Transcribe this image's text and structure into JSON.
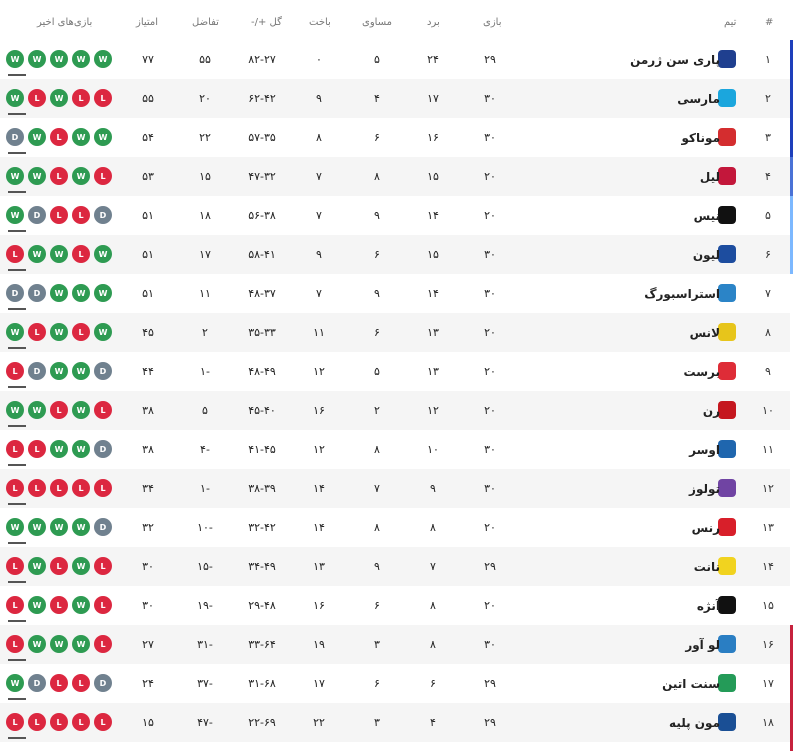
{
  "headers": {
    "pos": "#",
    "team": "تیم",
    "played": "بازی",
    "won": "برد",
    "drawn": "مساوی",
    "lost": "باخت",
    "goals": "گل +/-",
    "diff": "تفاضل",
    "points": "امتیاز",
    "form": "بازی‌های اخیر"
  },
  "colors": {
    "W": "#2e9b52",
    "D": "#70818f",
    "L": "#dc2740"
  },
  "rows": [
    {
      "pos": "۱",
      "team": "پاری سن ژرمن",
      "played": "۲۹",
      "won": "۲۴",
      "drawn": "۵",
      "lost": "۰",
      "goals": "۸۲-۲۷",
      "diff": "۵۵",
      "points": "۷۷",
      "form": [
        "W",
        "W",
        "W",
        "W",
        "W"
      ],
      "color": "#1f3f8f"
    },
    {
      "pos": "۲",
      "team": "مارسی",
      "played": "۳۰",
      "won": "۱۷",
      "drawn": "۴",
      "lost": "۹",
      "goals": "۶۲-۴۲",
      "diff": "۲۰",
      "points": "۵۵",
      "form": [
        "W",
        "L",
        "W",
        "L",
        "L"
      ],
      "color": "#1ba6dd"
    },
    {
      "pos": "۳",
      "team": "موناکو",
      "played": "۳۰",
      "won": "۱۶",
      "drawn": "۶",
      "lost": "۸",
      "goals": "۵۷-۳۵",
      "diff": "۲۲",
      "points": "۵۴",
      "form": [
        "D",
        "W",
        "L",
        "W",
        "W"
      ],
      "color": "#d42d2f"
    },
    {
      "pos": "۴",
      "team": "لیل",
      "played": "۲۰",
      "won": "۱۵",
      "drawn": "۸",
      "lost": "۷",
      "goals": "۴۷-۳۲",
      "diff": "۱۵",
      "points": "۵۳",
      "form": [
        "W",
        "W",
        "L",
        "W",
        "L"
      ],
      "color": "#c3173b"
    },
    {
      "pos": "۵",
      "team": "نیس",
      "played": "۲۰",
      "won": "۱۴",
      "drawn": "۹",
      "lost": "۷",
      "goals": "۵۶-۳۸",
      "diff": "۱۸",
      "points": "۵۱",
      "form": [
        "W",
        "D",
        "L",
        "L",
        "D"
      ],
      "color": "#111111"
    },
    {
      "pos": "۶",
      "team": "لیون",
      "played": "۳۰",
      "won": "۱۵",
      "drawn": "۶",
      "lost": "۹",
      "goals": "۵۸-۴۱",
      "diff": "۱۷",
      "points": "۵۱",
      "form": [
        "L",
        "W",
        "W",
        "L",
        "W"
      ],
      "color": "#1d4d9f"
    },
    {
      "pos": "۷",
      "team": "استراسبورگ",
      "played": "۳۰",
      "won": "۱۴",
      "drawn": "۹",
      "lost": "۷",
      "goals": "۴۸-۳۷",
      "diff": "۱۱",
      "points": "۵۱",
      "form": [
        "D",
        "D",
        "W",
        "W",
        "W"
      ],
      "color": "#2b84c7"
    },
    {
      "pos": "۸",
      "team": "لانس",
      "played": "۲۰",
      "won": "۱۳",
      "drawn": "۶",
      "lost": "۱۱",
      "goals": "۳۵-۳۳",
      "diff": "۲",
      "points": "۴۵",
      "form": [
        "W",
        "L",
        "W",
        "L",
        "W"
      ],
      "color": "#e7c51b"
    },
    {
      "pos": "۹",
      "team": "برست",
      "played": "۲۰",
      "won": "۱۳",
      "drawn": "۵",
      "lost": "۱۲",
      "goals": "۴۸-۴۹",
      "diff": "-۱",
      "points": "۴۴",
      "form": [
        "L",
        "D",
        "W",
        "W",
        "D"
      ],
      "color": "#de2c37"
    },
    {
      "pos": "۱۰",
      "team": "رن",
      "played": "۲۰",
      "won": "۱۲",
      "drawn": "۲",
      "lost": "۱۶",
      "goals": "۴۵-۴۰",
      "diff": "۵",
      "points": "۳۸",
      "form": [
        "W",
        "W",
        "L",
        "W",
        "L"
      ],
      "color": "#c5171f"
    },
    {
      "pos": "۱۱",
      "team": "اوسر",
      "played": "۳۰",
      "won": "۱۰",
      "drawn": "۸",
      "lost": "۱۲",
      "goals": "۴۱-۴۵",
      "diff": "-۴",
      "points": "۳۸",
      "form": [
        "L",
        "L",
        "W",
        "W",
        "D"
      ],
      "color": "#1f66ae"
    },
    {
      "pos": "۱۲",
      "team": "تولوز",
      "played": "۳۰",
      "won": "۹",
      "drawn": "۷",
      "lost": "۱۴",
      "goals": "۳۸-۳۹",
      "diff": "-۱",
      "points": "۳۴",
      "form": [
        "L",
        "L",
        "L",
        "L",
        "L"
      ],
      "color": "#7044a3"
    },
    {
      "pos": "۱۳",
      "team": "رنس",
      "played": "۲۰",
      "won": "۸",
      "drawn": "۸",
      "lost": "۱۴",
      "goals": "۳۲-۴۲",
      "diff": "-۱۰",
      "points": "۳۲",
      "form": [
        "W",
        "W",
        "W",
        "W",
        "D"
      ],
      "color": "#d81f2a"
    },
    {
      "pos": "۱۴",
      "team": "نانت",
      "played": "۲۹",
      "won": "۷",
      "drawn": "۹",
      "lost": "۱۳",
      "goals": "۳۴-۴۹",
      "diff": "-۱۵",
      "points": "۳۰",
      "form": [
        "L",
        "W",
        "L",
        "W",
        "L"
      ],
      "color": "#f1d31f"
    },
    {
      "pos": "۱۵",
      "team": "آنژه",
      "played": "۲۰",
      "won": "۸",
      "drawn": "۶",
      "lost": "۱۶",
      "goals": "۲۹-۴۸",
      "diff": "-۱۹",
      "points": "۳۰",
      "form": [
        "L",
        "W",
        "L",
        "W",
        "L"
      ],
      "color": "#111111"
    },
    {
      "pos": "۱۶",
      "team": "لو آور",
      "played": "۳۰",
      "won": "۸",
      "drawn": "۳",
      "lost": "۱۹",
      "goals": "۳۳-۶۴",
      "diff": "-۳۱",
      "points": "۲۷",
      "form": [
        "L",
        "W",
        "W",
        "W",
        "L"
      ],
      "color": "#2a7ec3"
    },
    {
      "pos": "۱۷",
      "team": "سنت اتین",
      "played": "۲۹",
      "won": "۶",
      "drawn": "۶",
      "lost": "۱۷",
      "goals": "۳۱-۶۸",
      "diff": "-۳۷",
      "points": "۲۴",
      "form": [
        "W",
        "D",
        "L",
        "L",
        "D"
      ],
      "color": "#249b58"
    },
    {
      "pos": "۱۸",
      "team": "مون پلیه",
      "played": "۲۹",
      "won": "۴",
      "drawn": "۳",
      "lost": "۲۲",
      "goals": "۲۲-۶۹",
      "diff": "-۴۷",
      "points": "۱۵",
      "form": [
        "L",
        "L",
        "L",
        "L",
        "L"
      ],
      "color": "#1a4f95"
    }
  ]
}
